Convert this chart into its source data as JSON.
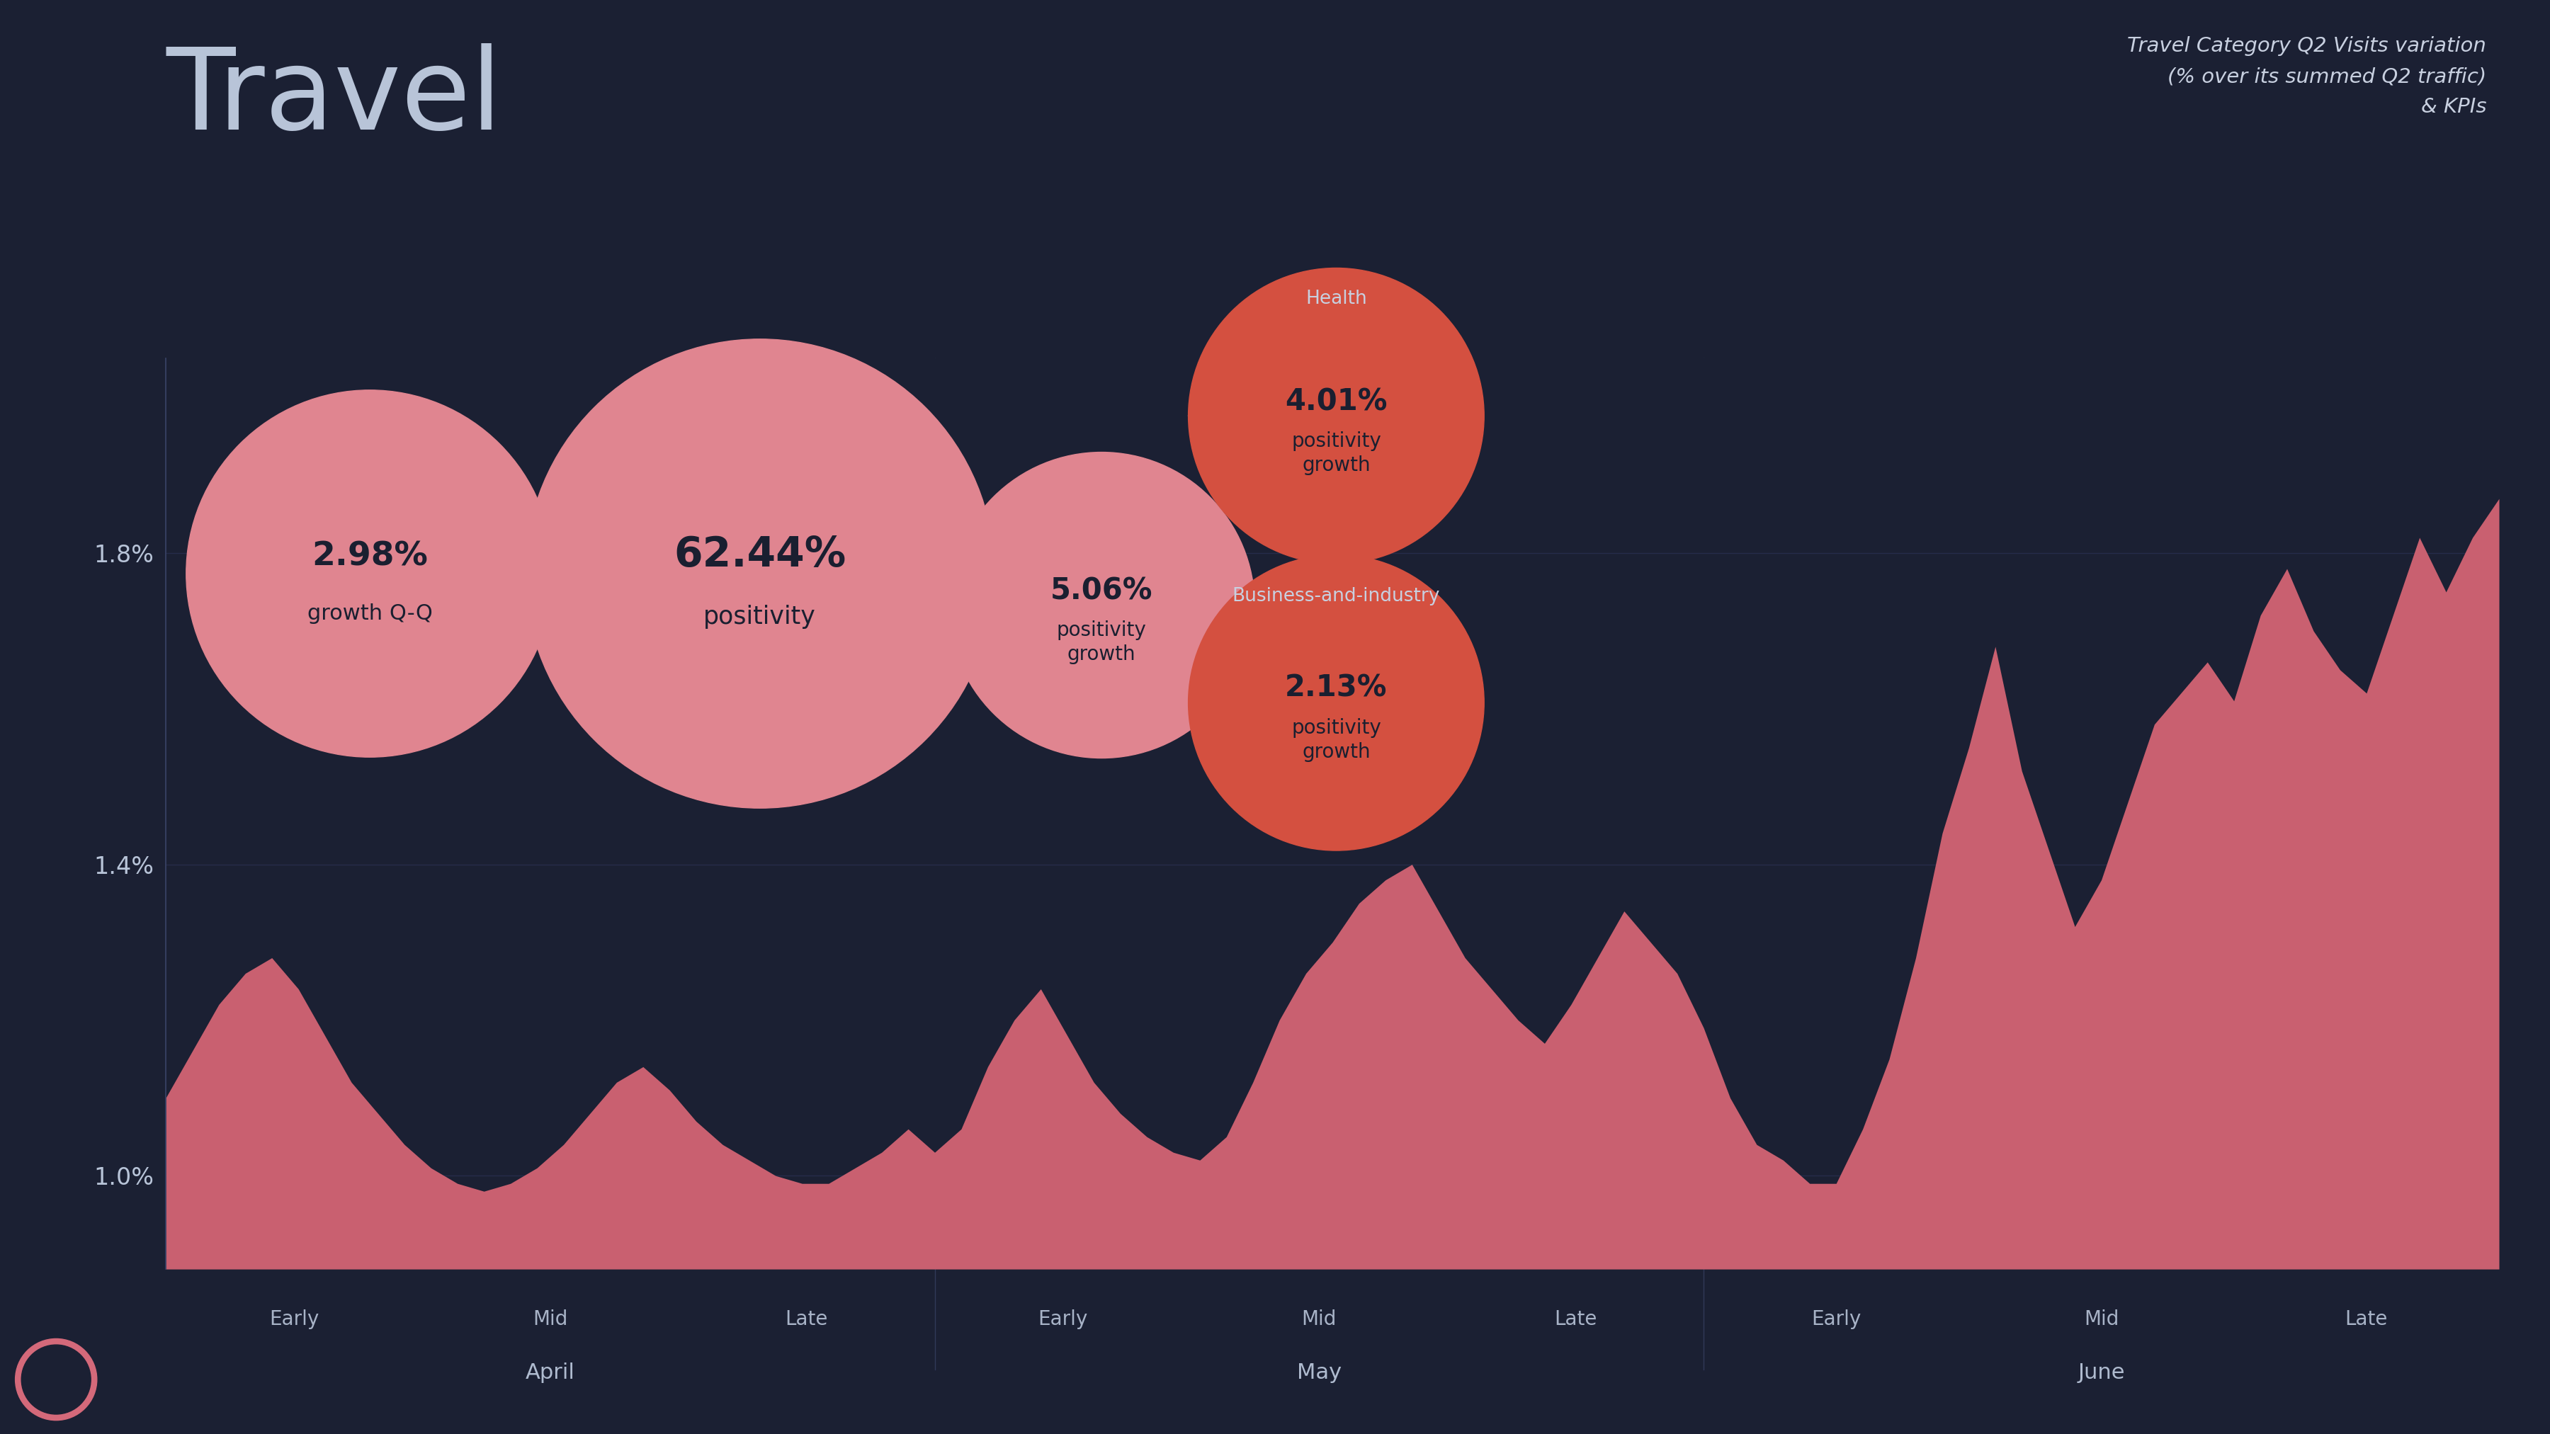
{
  "title": "Travel",
  "subtitle": "Travel Category Q2 Visits variation\n(% over its summed Q2 traffic)\n& KPIs",
  "bg_color": "#1b2033",
  "title_color": "#b8c4d8",
  "subtitle_color": "#c8d0e0",
  "area_color": "#c96070",
  "area_alpha": 1.0,
  "ytick_labels": [
    "1.0%",
    "1.4%",
    "1.8%"
  ],
  "ytick_values": [
    1.0,
    1.4,
    1.8
  ],
  "ylim": [
    0.88,
    2.05
  ],
  "grid_color": "#252a40",
  "axis_color": "#3a4060",
  "tick_color": "#b8c4d8",
  "months": [
    "April",
    "May",
    "June"
  ],
  "month_sections": [
    "Early",
    "Mid",
    "Late",
    "Early",
    "Mid",
    "Late",
    "Early",
    "Mid",
    "Late"
  ],
  "logo_color": "#d4697a",
  "x_values": [
    0,
    1,
    2,
    3,
    4,
    5,
    6,
    7,
    8,
    9,
    10,
    11,
    12,
    13,
    14,
    15,
    16,
    17,
    18,
    19,
    20,
    21,
    22,
    23,
    24,
    25,
    26,
    27,
    28,
    29,
    30,
    31,
    32,
    33,
    34,
    35,
    36,
    37,
    38,
    39,
    40,
    41,
    42,
    43,
    44,
    45,
    46,
    47,
    48,
    49,
    50,
    51,
    52,
    53,
    54,
    55,
    56,
    57,
    58,
    59,
    60,
    61,
    62,
    63,
    64,
    65,
    66,
    67,
    68,
    69,
    70,
    71,
    72,
    73,
    74,
    75,
    76,
    77,
    78,
    79,
    80,
    81,
    82,
    83,
    84,
    85,
    86,
    87,
    88
  ],
  "y_values": [
    1.1,
    1.16,
    1.22,
    1.26,
    1.28,
    1.24,
    1.18,
    1.12,
    1.08,
    1.04,
    1.01,
    0.99,
    0.98,
    0.99,
    1.01,
    1.04,
    1.08,
    1.12,
    1.14,
    1.11,
    1.07,
    1.04,
    1.02,
    1.0,
    0.99,
    0.99,
    1.01,
    1.03,
    1.06,
    1.03,
    1.06,
    1.14,
    1.2,
    1.24,
    1.18,
    1.12,
    1.08,
    1.05,
    1.03,
    1.02,
    1.05,
    1.12,
    1.2,
    1.26,
    1.3,
    1.35,
    1.38,
    1.4,
    1.34,
    1.28,
    1.24,
    1.2,
    1.17,
    1.22,
    1.28,
    1.34,
    1.3,
    1.26,
    1.19,
    1.1,
    1.04,
    1.02,
    0.99,
    0.99,
    1.06,
    1.15,
    1.28,
    1.44,
    1.55,
    1.68,
    1.52,
    1.42,
    1.32,
    1.38,
    1.48,
    1.58,
    1.62,
    1.66,
    1.61,
    1.72,
    1.78,
    1.7,
    1.65,
    1.62,
    1.72,
    1.82,
    1.75,
    1.82,
    1.87
  ]
}
